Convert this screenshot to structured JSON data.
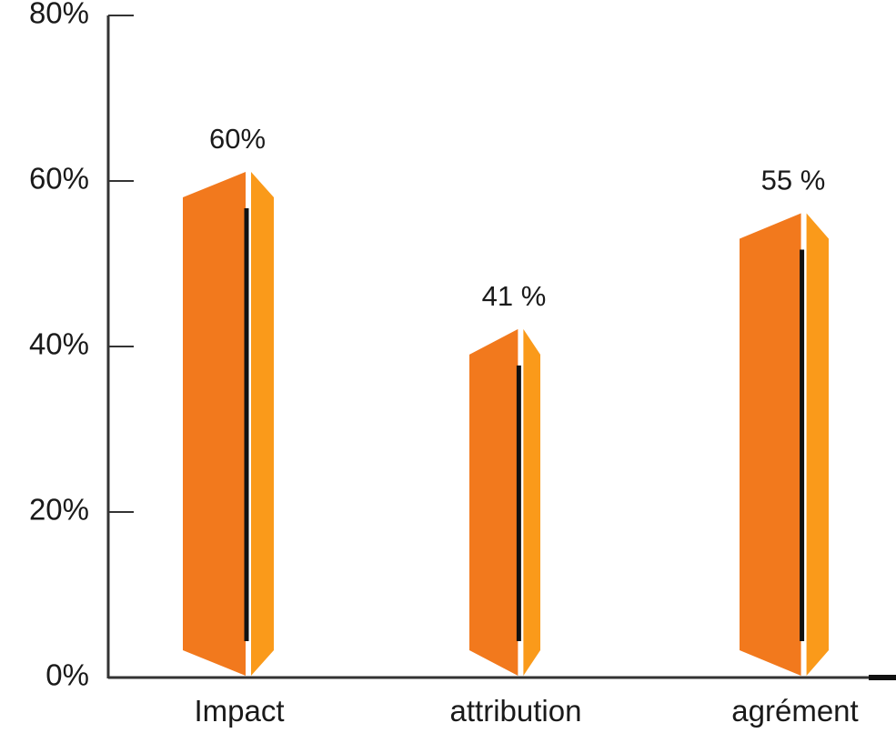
{
  "chart_data": {
    "type": "bar",
    "categories": [
      "Impact",
      "attribution",
      "agrément"
    ],
    "values": [
      60,
      41,
      55
    ],
    "data_labels": [
      "60%",
      "41 %",
      "55 %"
    ],
    "y_ticks": [
      "0%",
      "20%",
      "40%",
      "60%",
      "80%"
    ],
    "y_tick_values": [
      0,
      20,
      40,
      60,
      80
    ],
    "ylim": [
      0,
      80
    ],
    "title": "",
    "xlabel": "",
    "ylabel": "",
    "grid": false,
    "legend": "none",
    "colors": {
      "bar_front": "#F2791D",
      "bar_side": "#FA9A1A",
      "stem": "#111111",
      "axis": "#333333"
    }
  }
}
